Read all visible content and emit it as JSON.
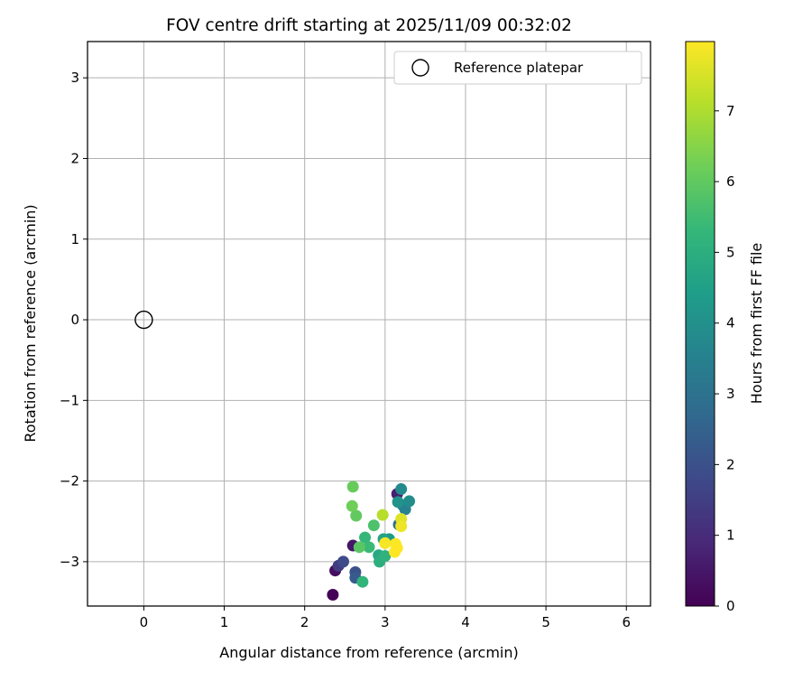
{
  "chart_data": {
    "type": "scatter",
    "title": "FOV centre drift starting at 2025/11/09 00:32:02",
    "xlabel": "Angular distance from reference (arcmin)",
    "ylabel": "Rotation from reference (arcmin)",
    "xlim": [
      -0.7,
      6.3
    ],
    "ylim": [
      -3.55,
      3.45
    ],
    "x_ticks": [
      0,
      1,
      2,
      3,
      4,
      5,
      6
    ],
    "x_tick_labels": [
      "0",
      "1",
      "2",
      "3",
      "4",
      "5",
      "6"
    ],
    "y_ticks": [
      -3,
      -2,
      -1,
      0,
      1,
      2,
      3
    ],
    "y_tick_labels": [
      "−3",
      "−2",
      "−1",
      "0",
      "1",
      "2",
      "3"
    ],
    "grid": true,
    "legend": {
      "position": "top-right",
      "entries": [
        "Reference platepar"
      ]
    },
    "reference_point": {
      "x": 0,
      "y": 0,
      "label": "Reference platepar"
    },
    "colorbar": {
      "label": "Hours from first FF file",
      "min": 0,
      "max": 7.98,
      "ticks": [
        0,
        1,
        2,
        3,
        4,
        5,
        6,
        7
      ],
      "tick_labels": [
        "0",
        "1",
        "2",
        "3",
        "4",
        "5",
        "6",
        "7"
      ],
      "colormap": "viridis",
      "stops": [
        "#440154",
        "#482878",
        "#3e4989",
        "#31688e",
        "#26828e",
        "#1f9e89",
        "#35b779",
        "#6ece58",
        "#b5de2b",
        "#fde725"
      ]
    },
    "points": [
      {
        "x": 2.35,
        "y": -3.41,
        "hours": 0.05
      },
      {
        "x": 2.38,
        "y": -3.11,
        "hours": 0.3
      },
      {
        "x": 2.6,
        "y": -2.8,
        "hours": 0.5
      },
      {
        "x": 3.15,
        "y": -2.16,
        "hours": 0.7
      },
      {
        "x": 2.42,
        "y": -3.05,
        "hours": 1.4
      },
      {
        "x": 2.48,
        "y": -3.0,
        "hours": 1.8
      },
      {
        "x": 2.63,
        "y": -3.13,
        "hours": 2.0
      },
      {
        "x": 2.63,
        "y": -3.2,
        "hours": 2.3
      },
      {
        "x": 3.17,
        "y": -2.54,
        "hours": 3.0
      },
      {
        "x": 3.22,
        "y": -2.3,
        "hours": 3.4
      },
      {
        "x": 3.25,
        "y": -2.35,
        "hours": 3.5
      },
      {
        "x": 3.2,
        "y": -2.1,
        "hours": 3.8
      },
      {
        "x": 3.3,
        "y": -2.25,
        "hours": 3.9
      },
      {
        "x": 3.16,
        "y": -2.26,
        "hours": 4.1
      },
      {
        "x": 3.05,
        "y": -2.72,
        "hours": 4.3
      },
      {
        "x": 2.98,
        "y": -2.72,
        "hours": 4.6
      },
      {
        "x": 2.92,
        "y": -2.92,
        "hours": 4.8
      },
      {
        "x": 2.93,
        "y": -3.0,
        "hours": 5.0
      },
      {
        "x": 3.0,
        "y": -2.93,
        "hours": 5.1
      },
      {
        "x": 2.72,
        "y": -3.25,
        "hours": 5.2
      },
      {
        "x": 2.75,
        "y": -2.7,
        "hours": 5.3
      },
      {
        "x": 2.8,
        "y": -2.82,
        "hours": 5.4
      },
      {
        "x": 2.86,
        "y": -2.55,
        "hours": 5.7
      },
      {
        "x": 2.68,
        "y": -2.82,
        "hours": 5.9
      },
      {
        "x": 2.64,
        "y": -2.43,
        "hours": 6.0
      },
      {
        "x": 2.6,
        "y": -2.07,
        "hours": 6.1
      },
      {
        "x": 2.59,
        "y": -2.31,
        "hours": 6.2
      },
      {
        "x": 2.97,
        "y": -2.42,
        "hours": 7.1
      },
      {
        "x": 3.2,
        "y": -2.47,
        "hours": 7.6
      },
      {
        "x": 3.2,
        "y": -2.56,
        "hours": 7.8
      },
      {
        "x": 3.0,
        "y": -2.77,
        "hours": 7.9
      },
      {
        "x": 3.13,
        "y": -2.78,
        "hours": 7.95
      },
      {
        "x": 3.15,
        "y": -2.83,
        "hours": 7.97
      },
      {
        "x": 3.12,
        "y": -2.88,
        "hours": 7.98
      }
    ]
  }
}
